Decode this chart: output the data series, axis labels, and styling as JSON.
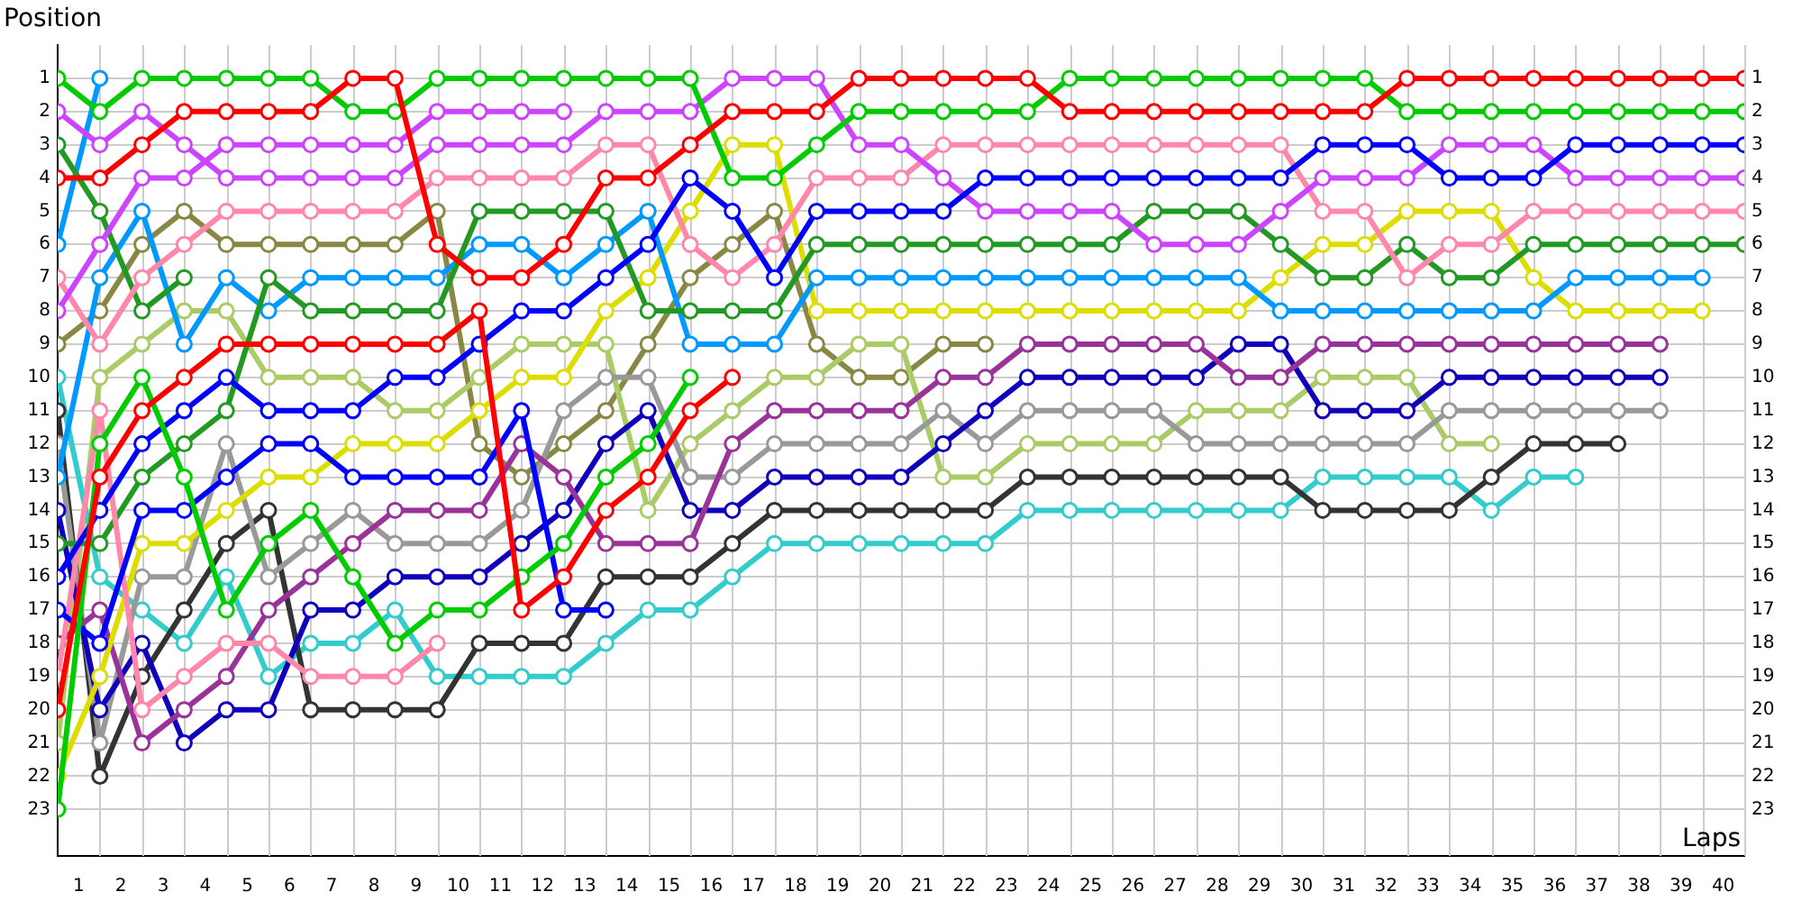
{
  "chart_data": {
    "type": "line",
    "xlabel": "Laps",
    "ylabel": "Position",
    "x": [
      0,
      1,
      2,
      3,
      4,
      5,
      6,
      7,
      8,
      9,
      10,
      11,
      12,
      13,
      14,
      15,
      16,
      17,
      18,
      19,
      20,
      21,
      22,
      23,
      24,
      25,
      26,
      27,
      28,
      29,
      30,
      31,
      32,
      33,
      34,
      35,
      36,
      37,
      38,
      39,
      40
    ],
    "series": [
      {
        "color": "#ff0000",
        "values": [
          4,
          4,
          3,
          2,
          2,
          2,
          2,
          1,
          1,
          6,
          7,
          7,
          6,
          4,
          4,
          3,
          2,
          2,
          2,
          1,
          1,
          1,
          1,
          1,
          2,
          2,
          2,
          2,
          2,
          2,
          2,
          2,
          1,
          1,
          1,
          1,
          1,
          1,
          1,
          1,
          1
        ]
      },
      {
        "color": "#ff0000",
        "values": [
          20,
          13,
          11,
          10,
          9,
          9,
          9,
          9,
          9,
          9,
          8,
          17,
          16,
          14,
          13,
          11,
          10,
          null,
          null,
          null,
          null,
          null,
          null,
          null,
          null,
          null,
          null,
          null,
          null,
          null,
          null,
          null,
          null,
          null,
          null,
          null,
          null,
          null,
          null,
          null,
          null
        ]
      },
      {
        "color": "#00cc00",
        "values": [
          1,
          2,
          1,
          1,
          1,
          1,
          1,
          2,
          2,
          1,
          1,
          1,
          1,
          1,
          1,
          1,
          4,
          4,
          3,
          2,
          2,
          2,
          2,
          2,
          1,
          1,
          1,
          1,
          1,
          1,
          1,
          1,
          2,
          2,
          2,
          2,
          2,
          2,
          2,
          2,
          2
        ]
      },
      {
        "color": "#00cc00",
        "values": [
          23,
          12,
          10,
          13,
          17,
          15,
          14,
          16,
          18,
          17,
          17,
          16,
          15,
          13,
          12,
          10,
          null,
          null,
          null,
          null,
          null,
          null,
          null,
          null,
          null,
          null,
          null,
          null,
          null,
          null,
          null,
          null,
          null,
          null,
          null,
          null,
          null,
          null,
          null,
          null,
          null
        ]
      },
      {
        "color": "#0000ff",
        "values": [
          16,
          14,
          12,
          11,
          10,
          11,
          11,
          11,
          10,
          10,
          9,
          8,
          8,
          7,
          6,
          4,
          5,
          7,
          5,
          5,
          5,
          5,
          4,
          4,
          4,
          4,
          4,
          4,
          4,
          4,
          3,
          3,
          3,
          4,
          4,
          4,
          3,
          3,
          3,
          3,
          3
        ]
      },
      {
        "color": "#0000ff",
        "values": [
          17,
          18,
          14,
          14,
          13,
          12,
          12,
          13,
          13,
          13,
          13,
          11,
          17,
          17,
          null,
          null,
          null,
          null,
          null,
          null,
          null,
          null,
          null,
          null,
          null,
          null,
          null,
          null,
          null,
          null,
          null,
          null,
          null,
          null,
          null,
          null,
          null,
          null,
          null,
          null,
          null
        ]
      },
      {
        "color": "#cc44ff",
        "values": [
          2,
          3,
          2,
          3,
          4,
          4,
          4,
          4,
          4,
          3,
          3,
          3,
          3,
          2,
          2,
          2,
          1,
          1,
          1,
          3,
          3,
          4,
          5,
          5,
          5,
          5,
          6,
          6,
          6,
          5,
          4,
          4,
          4,
          3,
          3,
          3,
          4,
          4,
          4,
          4,
          4
        ]
      },
      {
        "color": "#cc44ff",
        "values": [
          8,
          6,
          4,
          4,
          3,
          3,
          3,
          3,
          3,
          2,
          2,
          2,
          2,
          null,
          null,
          null,
          null,
          null,
          null,
          null,
          null,
          null,
          null,
          null,
          null,
          null,
          null,
          null,
          null,
          null,
          null,
          null,
          null,
          null,
          null,
          null,
          null,
          null,
          null,
          null,
          null
        ]
      },
      {
        "color": "#ff88aa",
        "values": [
          7,
          9,
          7,
          6,
          5,
          5,
          5,
          5,
          5,
          4,
          4,
          4,
          4,
          3,
          3,
          6,
          7,
          6,
          4,
          4,
          4,
          3,
          3,
          3,
          3,
          3,
          3,
          3,
          3,
          3,
          5,
          5,
          7,
          6,
          6,
          5,
          5,
          5,
          5,
          5,
          5
        ]
      },
      {
        "color": "#ff88aa",
        "values": [
          19,
          11,
          20,
          19,
          18,
          18,
          19,
          19,
          19,
          18,
          null,
          null,
          null,
          null,
          null,
          null,
          null,
          null,
          null,
          null,
          null,
          null,
          null,
          null,
          null,
          null,
          null,
          null,
          null,
          null,
          null,
          null,
          null,
          null,
          null,
          null,
          null,
          null,
          null,
          null,
          null
        ]
      },
      {
        "color": "#229922",
        "values": [
          15,
          15,
          13,
          12,
          11,
          7,
          8,
          8,
          8,
          8,
          5,
          5,
          5,
          5,
          8,
          8,
          8,
          8,
          6,
          6,
          6,
          6,
          6,
          6,
          6,
          6,
          5,
          5,
          5,
          6,
          7,
          7,
          6,
          7,
          7,
          6,
          6,
          6,
          6,
          6,
          6
        ]
      },
      {
        "color": "#229922",
        "values": [
          3,
          5,
          8,
          7,
          null,
          null,
          null,
          null,
          null,
          null,
          null,
          null,
          null,
          null,
          null,
          null,
          null,
          null,
          null,
          null,
          null,
          null,
          null,
          null,
          null,
          null,
          null,
          null,
          null,
          null,
          null,
          null,
          null,
          null,
          null,
          null,
          null,
          null,
          null,
          null,
          null
        ]
      },
      {
        "color": "#0099ff",
        "values": [
          13,
          7,
          5,
          9,
          7,
          8,
          7,
          7,
          7,
          7,
          6,
          6,
          7,
          6,
          5,
          9,
          9,
          9,
          7,
          7,
          7,
          7,
          7,
          7,
          7,
          7,
          7,
          7,
          7,
          8,
          8,
          8,
          8,
          8,
          8,
          8,
          7,
          7,
          7,
          7,
          null
        ]
      },
      {
        "color": "#0099ff",
        "values": [
          6,
          1,
          null,
          null,
          null,
          null,
          null,
          null,
          null,
          null,
          null,
          null,
          null,
          null,
          null,
          null,
          null,
          null,
          null,
          null,
          null,
          null,
          null,
          null,
          null,
          null,
          null,
          null,
          null,
          null,
          null,
          null,
          null,
          null,
          null,
          null,
          null,
          null,
          null,
          null,
          null
        ]
      },
      {
        "color": "#dddd00",
        "values": [
          22,
          19,
          15,
          15,
          14,
          13,
          13,
          12,
          12,
          12,
          11,
          10,
          10,
          8,
          7,
          5,
          3,
          3,
          8,
          8,
          8,
          8,
          8,
          8,
          8,
          8,
          8,
          8,
          8,
          7,
          6,
          6,
          5,
          5,
          5,
          7,
          8,
          8,
          8,
          8,
          null
        ]
      },
      {
        "color": "#993399",
        "values": [
          18,
          17,
          21,
          20,
          19,
          17,
          16,
          15,
          14,
          14,
          14,
          12,
          13,
          15,
          15,
          15,
          12,
          11,
          11,
          11,
          11,
          10,
          10,
          9,
          9,
          9,
          9,
          9,
          10,
          10,
          9,
          9,
          9,
          9,
          9,
          9,
          9,
          9,
          9,
          null,
          null
        ]
      },
      {
        "color": "#1100bb",
        "values": [
          14,
          20,
          18,
          21,
          20,
          20,
          17,
          17,
          16,
          16,
          16,
          15,
          14,
          12,
          11,
          14,
          14,
          13,
          13,
          13,
          13,
          12,
          11,
          10,
          10,
          10,
          10,
          10,
          9,
          9,
          11,
          11,
          11,
          10,
          10,
          10,
          10,
          10,
          10,
          null,
          null
        ]
      },
      {
        "color": "#999999",
        "values": [
          12,
          21,
          16,
          16,
          12,
          16,
          15,
          14,
          15,
          15,
          15,
          14,
          11,
          10,
          10,
          13,
          13,
          12,
          12,
          12,
          12,
          11,
          12,
          11,
          11,
          11,
          11,
          12,
          12,
          12,
          12,
          12,
          12,
          11,
          11,
          11,
          11,
          11,
          11,
          null,
          null
        ]
      },
      {
        "color": "#333333",
        "values": [
          11,
          22,
          19,
          17,
          15,
          14,
          20,
          20,
          20,
          20,
          18,
          18,
          18,
          16,
          16,
          16,
          15,
          14,
          14,
          14,
          14,
          14,
          14,
          13,
          13,
          13,
          13,
          13,
          13,
          13,
          14,
          14,
          14,
          14,
          13,
          12,
          12,
          12,
          null,
          null,
          null
        ]
      },
      {
        "color": "#33cccc",
        "values": [
          10,
          16,
          17,
          18,
          16,
          19,
          18,
          18,
          17,
          19,
          19,
          19,
          19,
          18,
          17,
          17,
          16,
          15,
          15,
          15,
          15,
          15,
          15,
          14,
          14,
          14,
          14,
          14,
          14,
          14,
          13,
          13,
          13,
          13,
          14,
          13,
          13,
          null,
          null,
          null,
          null
        ]
      },
      {
        "color": "#aacc66",
        "values": [
          21,
          10,
          9,
          8,
          8,
          10,
          10,
          10,
          11,
          11,
          10,
          9,
          9,
          9,
          14,
          12,
          11,
          10,
          10,
          9,
          9,
          13,
          13,
          12,
          12,
          12,
          12,
          11,
          11,
          11,
          10,
          10,
          10,
          12,
          12,
          null,
          null,
          null,
          null,
          null,
          null
        ]
      },
      {
        "color": "#888844",
        "values": [
          9,
          8,
          6,
          5,
          6,
          6,
          6,
          6,
          6,
          5,
          12,
          13,
          12,
          11,
          9,
          7,
          6,
          5,
          9,
          10,
          10,
          9,
          9,
          null,
          null,
          null,
          null,
          null,
          null,
          null,
          null,
          null,
          null,
          null,
          null,
          null,
          null,
          null,
          null,
          null,
          null
        ]
      }
    ],
    "xlim": [
      0,
      40
    ],
    "xticks": [
      {
        "value": 0.5,
        "label": "1"
      },
      {
        "value": 1.5,
        "label": "2"
      },
      {
        "value": 2.5,
        "label": "3"
      },
      {
        "value": 3.5,
        "label": "4"
      },
      {
        "value": 4.5,
        "label": "5"
      },
      {
        "value": 5.5,
        "label": "6"
      },
      {
        "value": 6.5,
        "label": "7"
      },
      {
        "value": 7.5,
        "label": "8"
      },
      {
        "value": 8.5,
        "label": "9"
      },
      {
        "value": 9.5,
        "label": "10"
      },
      {
        "value": 10.5,
        "label": "11"
      },
      {
        "value": 11.5,
        "label": "12"
      },
      {
        "value": 12.5,
        "label": "13"
      },
      {
        "value": 13.5,
        "label": "14"
      },
      {
        "value": 14.5,
        "label": "15"
      },
      {
        "value": 15.5,
        "label": "16"
      },
      {
        "value": 16.5,
        "label": "17"
      },
      {
        "value": 17.5,
        "label": "18"
      },
      {
        "value": 18.5,
        "label": "19"
      },
      {
        "value": 19.5,
        "label": "20"
      },
      {
        "value": 20.5,
        "label": "21"
      },
      {
        "value": 21.5,
        "label": "22"
      },
      {
        "value": 22.5,
        "label": "23"
      },
      {
        "value": 23.5,
        "label": "24"
      },
      {
        "value": 24.5,
        "label": "25"
      },
      {
        "value": 25.5,
        "label": "26"
      },
      {
        "value": 26.5,
        "label": "27"
      },
      {
        "value": 27.5,
        "label": "28"
      },
      {
        "value": 28.5,
        "label": "29"
      },
      {
        "value": 29.5,
        "label": "30"
      },
      {
        "value": 30.5,
        "label": "31"
      },
      {
        "value": 31.5,
        "label": "32"
      },
      {
        "value": 32.5,
        "label": "33"
      },
      {
        "value": 33.5,
        "label": "34"
      },
      {
        "value": 34.5,
        "label": "35"
      },
      {
        "value": 35.5,
        "label": "36"
      },
      {
        "value": 36.5,
        "label": "37"
      },
      {
        "value": 37.5,
        "label": "38"
      },
      {
        "value": 38.5,
        "label": "39"
      },
      {
        "value": 39.5,
        "label": "40"
      }
    ],
    "ylim": [
      24.4,
      0
    ],
    "yticks": [
      1,
      2,
      3,
      4,
      5,
      6,
      7,
      8,
      9,
      10,
      11,
      12,
      13,
      14,
      15,
      16,
      17,
      18,
      19,
      20,
      21,
      22,
      23
    ],
    "y2lim": [
      24.4,
      0
    ],
    "y2ticks": [
      1,
      2,
      3,
      4,
      5,
      6,
      7,
      8,
      9,
      10,
      11,
      12,
      13,
      14,
      15,
      16,
      17,
      18,
      19,
      20,
      21,
      22,
      23
    ],
    "grid": true,
    "legend": false,
    "marker": "circle",
    "line_style": "solid"
  }
}
